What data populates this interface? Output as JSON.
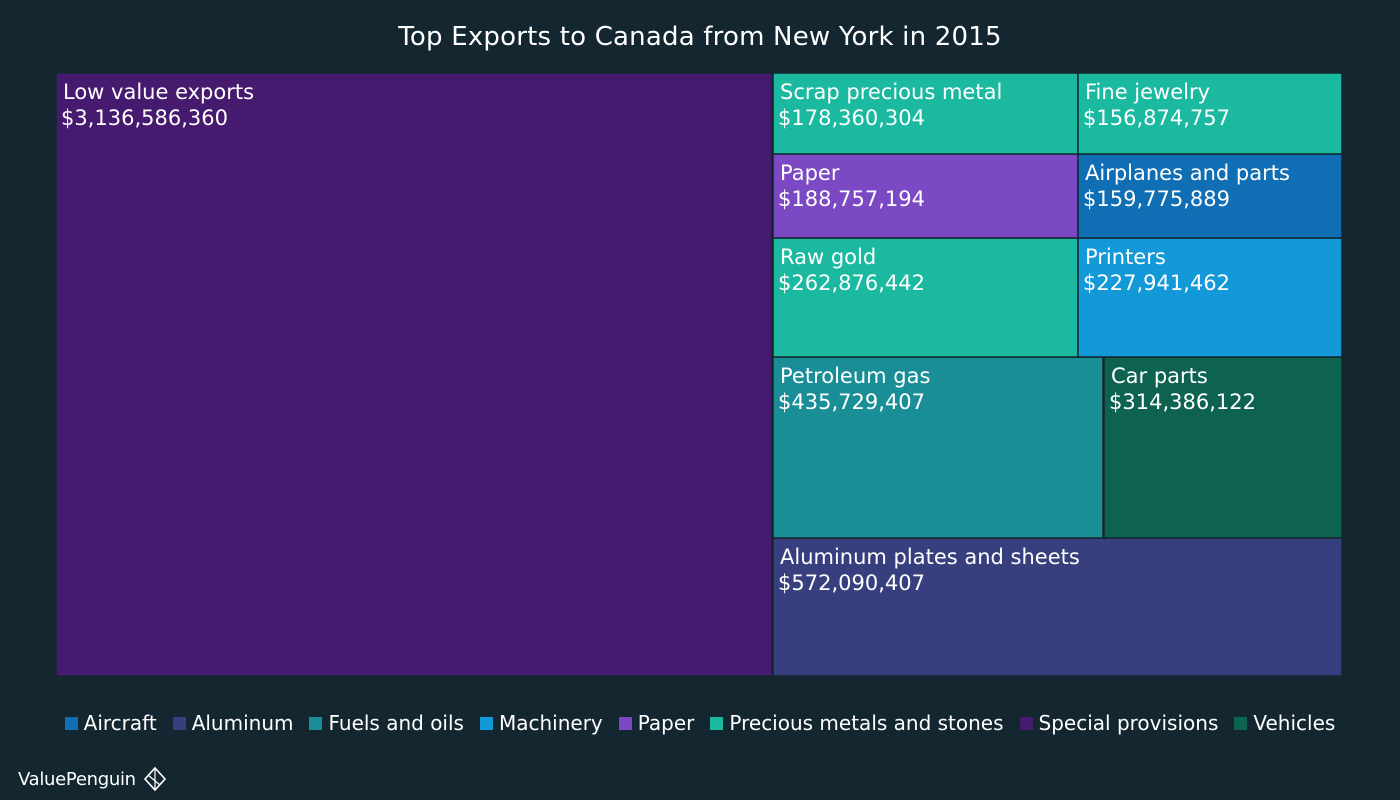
{
  "chart_data": {
    "type": "treemap",
    "title": "Top Exports to Canada from New York in 2015",
    "items": [
      {
        "name": "Low value exports",
        "label": "$3,136,586,360",
        "value": 3136586360,
        "category": "Special provisions"
      },
      {
        "name": "Aluminum plates and sheets",
        "label": "$572,090,407",
        "value": 572090407,
        "category": "Aluminum"
      },
      {
        "name": "Petroleum gas",
        "label": "$435,729,407",
        "value": 435729407,
        "category": "Fuels and oils"
      },
      {
        "name": "Car parts",
        "label": "$314,386,122",
        "value": 314386122,
        "category": "Vehicles"
      },
      {
        "name": "Raw gold",
        "label": "$262,876,442",
        "value": 262876442,
        "category": "Precious metals and stones"
      },
      {
        "name": "Printers",
        "label": "$227,941,462",
        "value": 227941462,
        "category": "Machinery"
      },
      {
        "name": "Paper",
        "label": "$188,757,194",
        "value": 188757194,
        "category": "Paper"
      },
      {
        "name": "Scrap precious metal",
        "label": "$178,360,304",
        "value": 178360304,
        "category": "Precious metals and stones"
      },
      {
        "name": "Airplanes and parts",
        "label": "$159,775,889",
        "value": 159775889,
        "category": "Aircraft"
      },
      {
        "name": "Fine jewelry",
        "label": "$156,874,757",
        "value": 156874757,
        "category": "Precious metals and stones"
      }
    ],
    "legend": [
      {
        "name": "Aircraft",
        "color": "#0f6eb4"
      },
      {
        "name": "Aluminum",
        "color": "#373f7e"
      },
      {
        "name": "Fuels and oils",
        "color": "#1a8e96"
      },
      {
        "name": "Machinery",
        "color": "#1398d8"
      },
      {
        "name": "Paper",
        "color": "#7c49c4"
      },
      {
        "name": "Precious metals and stones",
        "color": "#1ab9a0"
      },
      {
        "name": "Special provisions",
        "color": "#461a6e"
      },
      {
        "name": "Vehicles",
        "color": "#0e6350"
      }
    ],
    "legend_position": "bottom"
  },
  "brand": {
    "name": "ValuePenguin",
    "icon": "valuepenguin-logo-icon"
  }
}
